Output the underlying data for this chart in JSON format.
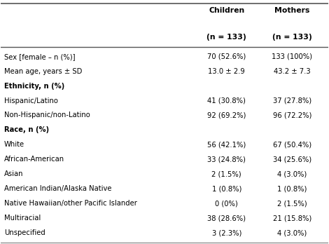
{
  "col_headers": [
    "Children\n(n = 133)",
    "Mothers\n(n = 133)"
  ],
  "rows": [
    {
      "label": "Sex [female – n (%)]",
      "bold": false,
      "children": "70 (52.6%)",
      "mothers": "133 (100%)"
    },
    {
      "label": "Mean age, years ± SD",
      "bold": false,
      "children": "13.0 ± 2.9",
      "mothers": "43.2 ± 7.3"
    },
    {
      "label": "Ethnicity, n (%)",
      "bold": true,
      "children": "",
      "mothers": ""
    },
    {
      "label": "Hispanic/Latino",
      "bold": false,
      "children": "41 (30.8%)",
      "mothers": "37 (27.8%)"
    },
    {
      "label": "Non-Hispanic/non-Latino",
      "bold": false,
      "children": "92 (69.2%)",
      "mothers": "96 (72.2%)"
    },
    {
      "label": "Race, n (%)",
      "bold": true,
      "children": "",
      "mothers": ""
    },
    {
      "label": "White",
      "bold": false,
      "children": "56 (42.1%)",
      "mothers": "67 (50.4%)"
    },
    {
      "label": "African-American",
      "bold": false,
      "children": "33 (24.8%)",
      "mothers": "34 (25.6%)"
    },
    {
      "label": "Asian",
      "bold": false,
      "children": "2 (1.5%)",
      "mothers": "4 (3.0%)"
    },
    {
      "label": "American Indian/Alaska Native",
      "bold": false,
      "children": "1 (0.8%)",
      "mothers": "1 (0.8%)"
    },
    {
      "label": "Native Hawaiian/other Pacific Islander",
      "bold": false,
      "children": "0 (0%)",
      "mothers": "2 (1.5%)"
    },
    {
      "label": "Multiracial",
      "bold": false,
      "children": "38 (28.6%)",
      "mothers": "21 (15.8%)"
    },
    {
      "label": "Unspecified",
      "bold": false,
      "children": "3 (2.3%)",
      "mothers": "4 (3.0%)"
    }
  ],
  "bg_color": "#f0f0f0",
  "header_line_color": "#555555",
  "bottom_line_color": "#555555",
  "font_size": 7.2,
  "header_font_size": 7.8
}
